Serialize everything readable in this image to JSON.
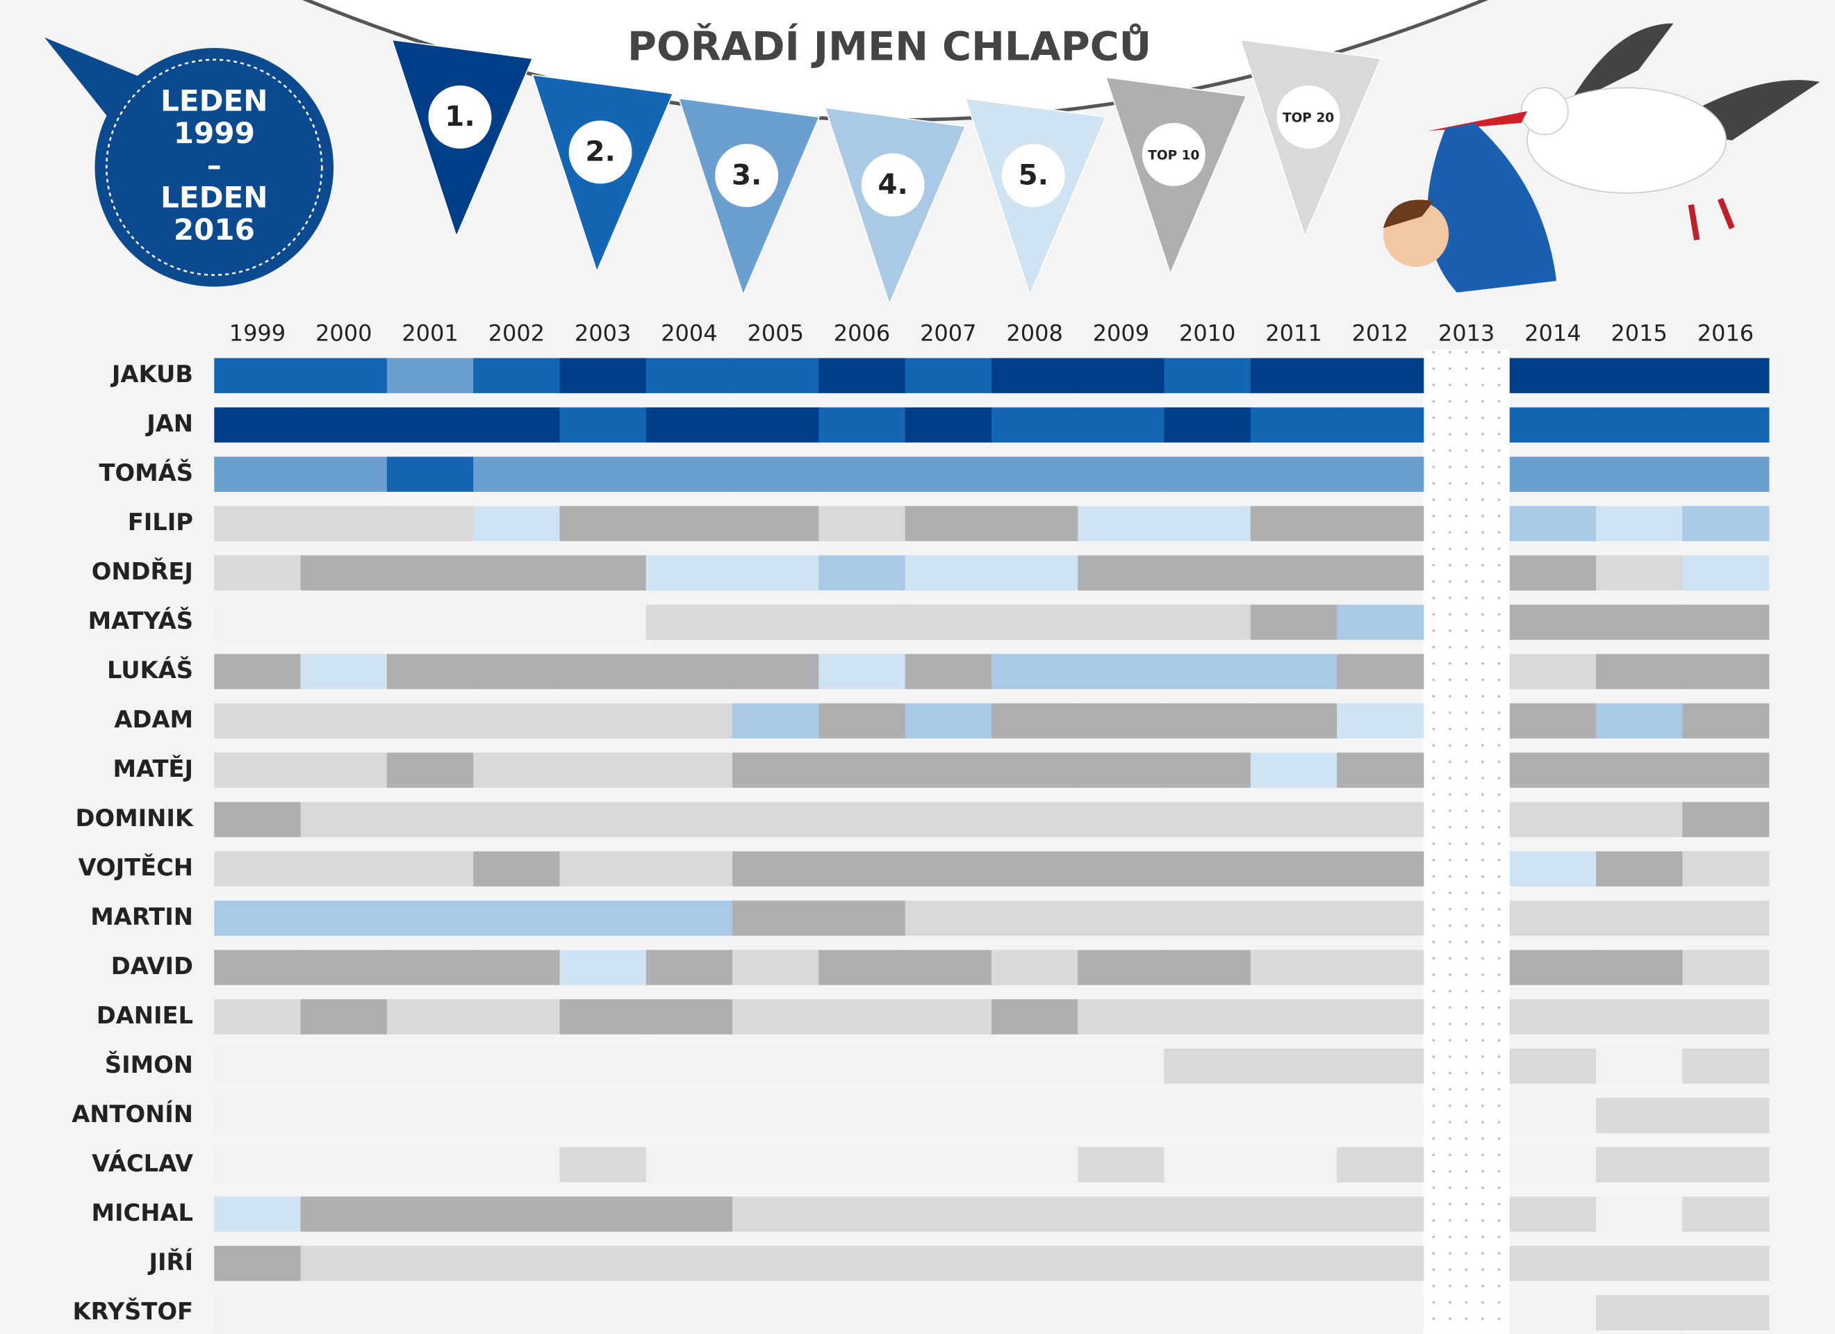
{
  "chart_data": {
    "type": "heatmap",
    "title": "POŘADÍ JMEN CHLAPCŮ",
    "period": [
      "LEDEN",
      "1999",
      "–",
      "LEDEN",
      "2016"
    ],
    "legend": [
      {
        "value": 1,
        "label": "1.",
        "color": "#003f87"
      },
      {
        "value": 2,
        "label": "2.",
        "color": "#1565b5"
      },
      {
        "value": 3,
        "label": "3.",
        "color": "#6a9fd0"
      },
      {
        "value": 4,
        "label": "4.",
        "color": "#a9c9e6"
      },
      {
        "value": 5,
        "label": "5.",
        "color": "#d0e3f3"
      },
      {
        "value": 10,
        "label": "TOP 10",
        "color": "#aeafb1"
      },
      {
        "value": 20,
        "label": "TOP 20",
        "color": "#d9d9d9"
      }
    ],
    "empty_color": "#f2f2f2",
    "x": [
      "1999",
      "2000",
      "2001",
      "2002",
      "2003",
      "2004",
      "2005",
      "2006",
      "2007",
      "2008",
      "2009",
      "2010",
      "2011",
      "2012",
      "2013",
      "2014",
      "2015",
      "2016"
    ],
    "series": [
      {
        "name": "JAKUB",
        "values": [
          2,
          2,
          3,
          2,
          1,
          2,
          2,
          1,
          2,
          1,
          1,
          2,
          1,
          1,
          null,
          1,
          1,
          1
        ]
      },
      {
        "name": "JAN",
        "values": [
          1,
          1,
          1,
          1,
          2,
          1,
          1,
          2,
          1,
          2,
          2,
          1,
          2,
          2,
          null,
          2,
          2,
          2
        ]
      },
      {
        "name": "TOMÁŠ",
        "values": [
          3,
          3,
          2,
          3,
          3,
          3,
          3,
          3,
          3,
          3,
          3,
          3,
          3,
          3,
          null,
          3,
          3,
          3
        ]
      },
      {
        "name": "FILIP",
        "values": [
          20,
          20,
          20,
          5,
          10,
          10,
          10,
          20,
          10,
          10,
          5,
          5,
          10,
          10,
          null,
          4,
          5,
          4
        ]
      },
      {
        "name": "ONDŘEJ",
        "values": [
          20,
          10,
          10,
          10,
          10,
          5,
          5,
          4,
          5,
          5,
          10,
          10,
          10,
          10,
          null,
          10,
          20,
          5
        ]
      },
      {
        "name": "MATYÁŠ",
        "values": [
          null,
          null,
          null,
          null,
          null,
          20,
          20,
          20,
          20,
          20,
          20,
          20,
          10,
          4,
          null,
          10,
          10,
          10
        ]
      },
      {
        "name": "LUKÁŠ",
        "values": [
          10,
          5,
          10,
          10,
          10,
          10,
          10,
          5,
          10,
          4,
          4,
          4,
          4,
          10,
          null,
          20,
          10,
          10
        ]
      },
      {
        "name": "ADAM",
        "values": [
          20,
          20,
          20,
          20,
          20,
          20,
          4,
          10,
          4,
          10,
          10,
          10,
          10,
          5,
          null,
          10,
          4,
          10
        ]
      },
      {
        "name": "MATĚJ",
        "values": [
          20,
          20,
          10,
          20,
          20,
          20,
          10,
          10,
          10,
          10,
          10,
          10,
          5,
          10,
          null,
          10,
          10,
          10
        ]
      },
      {
        "name": "DOMINIK",
        "values": [
          10,
          20,
          20,
          20,
          20,
          20,
          20,
          20,
          20,
          20,
          20,
          20,
          20,
          20,
          null,
          20,
          20,
          10
        ]
      },
      {
        "name": "VOJTĚCH",
        "values": [
          20,
          20,
          20,
          10,
          20,
          20,
          10,
          10,
          10,
          10,
          10,
          10,
          10,
          10,
          null,
          5,
          10,
          20
        ]
      },
      {
        "name": "MARTIN",
        "values": [
          4,
          4,
          4,
          4,
          4,
          4,
          10,
          10,
          20,
          20,
          20,
          20,
          20,
          20,
          null,
          20,
          20,
          20
        ]
      },
      {
        "name": "DAVID",
        "values": [
          10,
          10,
          10,
          10,
          5,
          10,
          20,
          10,
          10,
          20,
          10,
          10,
          20,
          20,
          null,
          10,
          10,
          20
        ]
      },
      {
        "name": "DANIEL",
        "values": [
          20,
          10,
          20,
          20,
          10,
          10,
          20,
          20,
          20,
          10,
          20,
          20,
          20,
          20,
          null,
          20,
          20,
          20
        ]
      },
      {
        "name": "ŠIMON",
        "values": [
          null,
          null,
          null,
          null,
          null,
          null,
          null,
          null,
          null,
          null,
          null,
          20,
          20,
          20,
          null,
          20,
          null,
          20
        ]
      },
      {
        "name": "ANTONÍN",
        "values": [
          null,
          null,
          null,
          null,
          null,
          null,
          null,
          null,
          null,
          null,
          null,
          null,
          null,
          null,
          null,
          null,
          20,
          20
        ]
      },
      {
        "name": "VÁCLAV",
        "values": [
          null,
          null,
          null,
          null,
          20,
          null,
          null,
          null,
          null,
          null,
          20,
          null,
          null,
          20,
          null,
          null,
          20,
          20
        ]
      },
      {
        "name": "MICHAL",
        "values": [
          5,
          10,
          10,
          10,
          10,
          10,
          20,
          20,
          20,
          20,
          20,
          20,
          20,
          20,
          null,
          20,
          null,
          20
        ]
      },
      {
        "name": "JIŘÍ",
        "values": [
          10,
          20,
          20,
          20,
          20,
          20,
          20,
          20,
          20,
          20,
          20,
          20,
          20,
          20,
          null,
          20,
          20,
          20
        ]
      },
      {
        "name": "KRYŠTOF",
        "values": [
          null,
          null,
          null,
          null,
          null,
          null,
          null,
          null,
          null,
          null,
          null,
          null,
          null,
          null,
          null,
          null,
          20,
          20
        ]
      }
    ]
  }
}
